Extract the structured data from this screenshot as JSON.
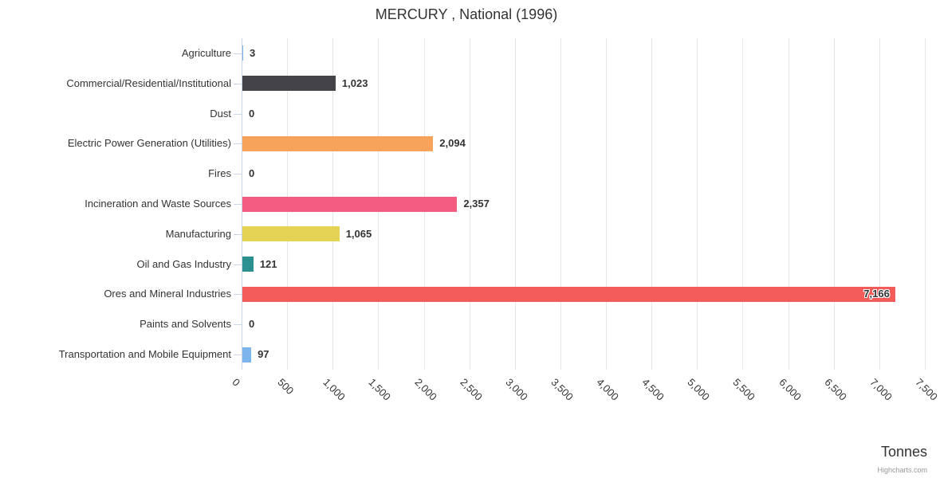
{
  "title": "MERCURY , National (1996)",
  "credits_label": "Highcharts.com",
  "chart_data": {
    "type": "bar",
    "orientation": "horizontal",
    "title": "MERCURY , National (1996)",
    "xlabel": "Tonnes",
    "ylabel": "",
    "categories": [
      "Agriculture",
      "Commercial/Residential/Institutional",
      "Dust",
      "Electric Power Generation (Utilities)",
      "Fires",
      "Incineration and Waste Sources",
      "Manufacturing",
      "Oil and Gas Industry",
      "Ores and Mineral Industries",
      "Paints and Solvents",
      "Transportation and Mobile Equipment"
    ],
    "values": [
      3,
      1023,
      0,
      2094,
      0,
      2357,
      1065,
      121,
      7166,
      0,
      97
    ],
    "value_labels": [
      "3",
      "1,023",
      "0",
      "2,094",
      "0",
      "2,357",
      "1,065",
      "121",
      "7,166",
      "0",
      "97"
    ],
    "bar_colors": [
      "#7cb5ec",
      "#434348",
      "#90ed7d",
      "#f7a35c",
      "#8085e9",
      "#f15c80",
      "#e4d354",
      "#2b908f",
      "#f45b5b",
      "#91e8e1",
      "#7cb5ec"
    ],
    "xlim": [
      0,
      7500
    ],
    "tick_interval": 500,
    "tick_labels": [
      "0",
      "500",
      "1,000",
      "1,500",
      "2,000",
      "2,500",
      "3,000",
      "3,500",
      "4,000",
      "4,500",
      "5,000",
      "5,500",
      "6,000",
      "6,500",
      "7,000",
      "7,500"
    ],
    "grid": true,
    "legend": false,
    "colors": {
      "grid_line": "#e6e6e6",
      "axis_line": "#ccd6eb",
      "text": "#333333",
      "credits_text": "#999999"
    }
  }
}
